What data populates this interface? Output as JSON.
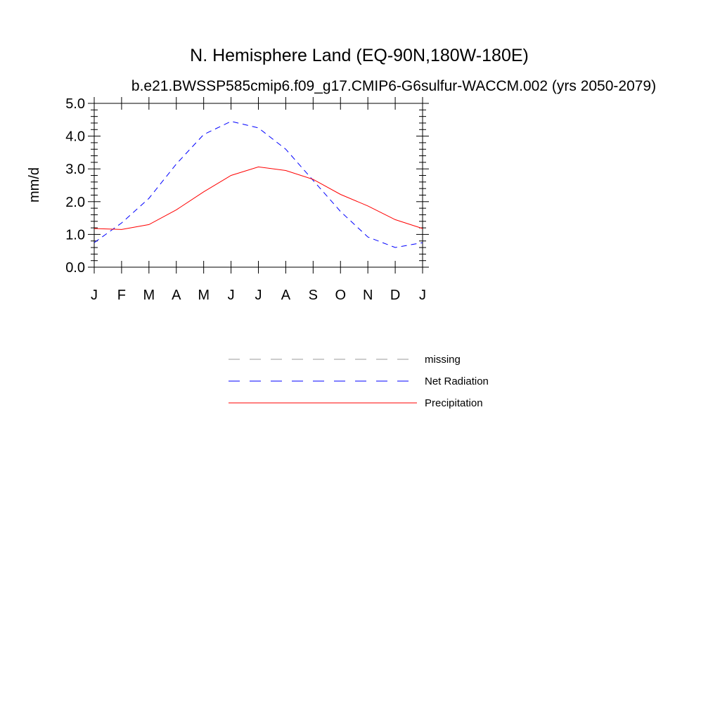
{
  "chart_data": {
    "type": "line",
    "title": "N. Hemisphere Land (EQ-90N,180W-180E)",
    "subtitle": "b.e21.BWSSP585cmip6.f09_g17.CMIP6-G6sulfur-WACCM.002 (yrs 2050-2079)",
    "ylabel": "mm/d",
    "xlabel": "",
    "categories": [
      "J",
      "F",
      "M",
      "A",
      "M",
      "J",
      "J",
      "A",
      "S",
      "O",
      "N",
      "D",
      "J"
    ],
    "ylim": [
      0,
      5
    ],
    "yticks": [
      "0.0",
      "1.0",
      "2.0",
      "3.0",
      "4.0",
      "5.0"
    ],
    "series": [
      {
        "name": "Net Radiation",
        "color": "#0000ff",
        "style": "dashed",
        "values": [
          0.75,
          1.35,
          2.1,
          3.15,
          4.05,
          4.45,
          4.25,
          3.6,
          2.65,
          1.7,
          0.92,
          0.6,
          0.75
        ]
      },
      {
        "name": "Precipitation",
        "color": "#ff0000",
        "style": "solid",
        "values": [
          1.18,
          1.15,
          1.3,
          1.75,
          2.3,
          2.8,
          3.06,
          2.95,
          2.68,
          2.22,
          1.87,
          1.45,
          1.18
        ]
      }
    ],
    "legend": [
      {
        "label": "missing",
        "color": "#9a9a9a",
        "style": "dashed"
      },
      {
        "label": "Net Radiation",
        "color": "#0000ff",
        "style": "dashed"
      },
      {
        "label": "Precipitation",
        "color": "#ff0000",
        "style": "solid"
      }
    ],
    "legend_position": "below"
  }
}
